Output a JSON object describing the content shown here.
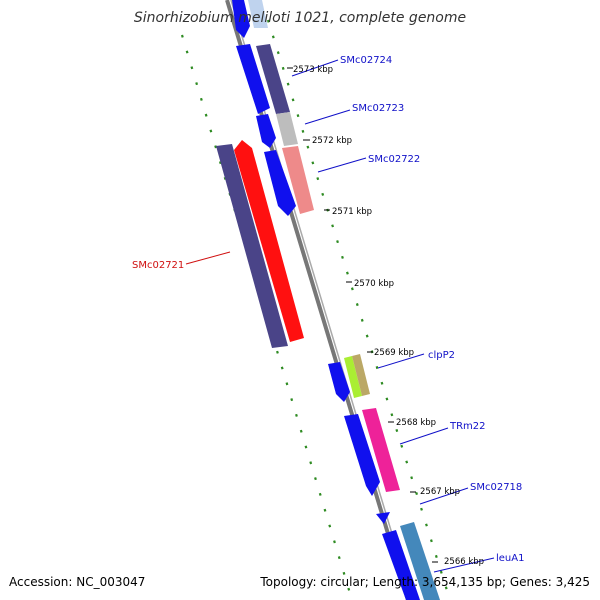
{
  "title": "Sinorhizobium meliloti 1021, complete genome",
  "footer": {
    "accession": "Accession: NC_003047",
    "summary": "Topology: circular; Length: 3,654,135 bp; Genes: 3,425"
  },
  "ticks": [
    {
      "label": "2573 kbp"
    },
    {
      "label": "2572 kbp"
    },
    {
      "label": "2571 kbp"
    },
    {
      "label": "2570 kbp"
    },
    {
      "label": "2569 kbp"
    },
    {
      "label": "2568 kbp"
    },
    {
      "label": "2567 kbp"
    },
    {
      "label": "2566 kbp"
    }
  ],
  "genes": [
    {
      "label": "SMc02724"
    },
    {
      "label": "SMc02723"
    },
    {
      "label": "SMc02722"
    },
    {
      "label": "SMc02721"
    },
    {
      "label": "clpP2"
    },
    {
      "label": "TRm22"
    },
    {
      "label": "SMc02718"
    },
    {
      "label": "leuA1"
    }
  ],
  "colors": {
    "backbone": "#8a8a8a",
    "tick_dashes": "#2e8b22",
    "cds_forward": "#1010ee",
    "cds_reverse_highlight": "#ff1010",
    "feature_purple": "#4a4488",
    "feature_gray": "#bdbdbd",
    "feature_salmon": "#ee8a8a",
    "feature_lime": "#aaee33",
    "feature_olive": "#bba866",
    "feature_pink": "#ee2299",
    "feature_steelblue": "#4488bb",
    "label_blue": "#1010c8",
    "label_red": "#d01010"
  }
}
